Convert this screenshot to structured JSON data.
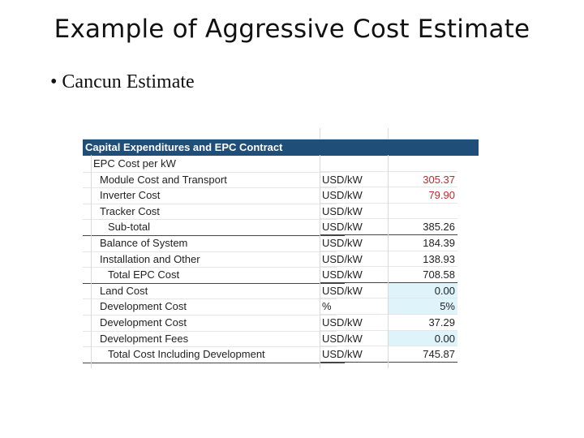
{
  "slide": {
    "title": "Example of Aggressive Cost Estimate",
    "bullet_marker": "•",
    "bullet_text": "Cancun Estimate"
  },
  "table": {
    "section_header": "Capital Expenditures and EPC Contract",
    "group_label": "EPC Cost per kW",
    "rows": [
      {
        "label": "Module Cost and Transport",
        "unit": "USD/kW",
        "value": "305.37"
      },
      {
        "label": "Inverter Cost",
        "unit": "USD/kW",
        "value": "79.90"
      },
      {
        "label": "Tracker Cost",
        "unit": "USD/kW",
        "value": ""
      },
      {
        "label": "Sub-total",
        "unit": "USD/kW",
        "value": "385.26"
      },
      {
        "label": "Balance of System",
        "unit": "USD/kW",
        "value": "184.39"
      },
      {
        "label": "Installation and Other",
        "unit": "USD/kW",
        "value": "138.93"
      },
      {
        "label": "Total EPC Cost",
        "unit": "USD/kW",
        "value": "708.58"
      },
      {
        "label": "Land Cost",
        "unit": "USD/kW",
        "value": "0.00"
      },
      {
        "label": "Development Cost",
        "unit": "%",
        "value": "5%"
      },
      {
        "label": "Development Cost",
        "unit": "USD/kW",
        "value": "37.29"
      },
      {
        "label": "Development Fees",
        "unit": "USD/kW",
        "value": "0.00"
      },
      {
        "label": "Total Cost Including Development",
        "unit": "USD/kW",
        "value": "745.87"
      }
    ],
    "colors": {
      "header_bg": "#1f4e79",
      "header_text": "#ffffff",
      "input_value_red": "#c0282d",
      "input_cell_bg": "#dff3fb"
    }
  }
}
